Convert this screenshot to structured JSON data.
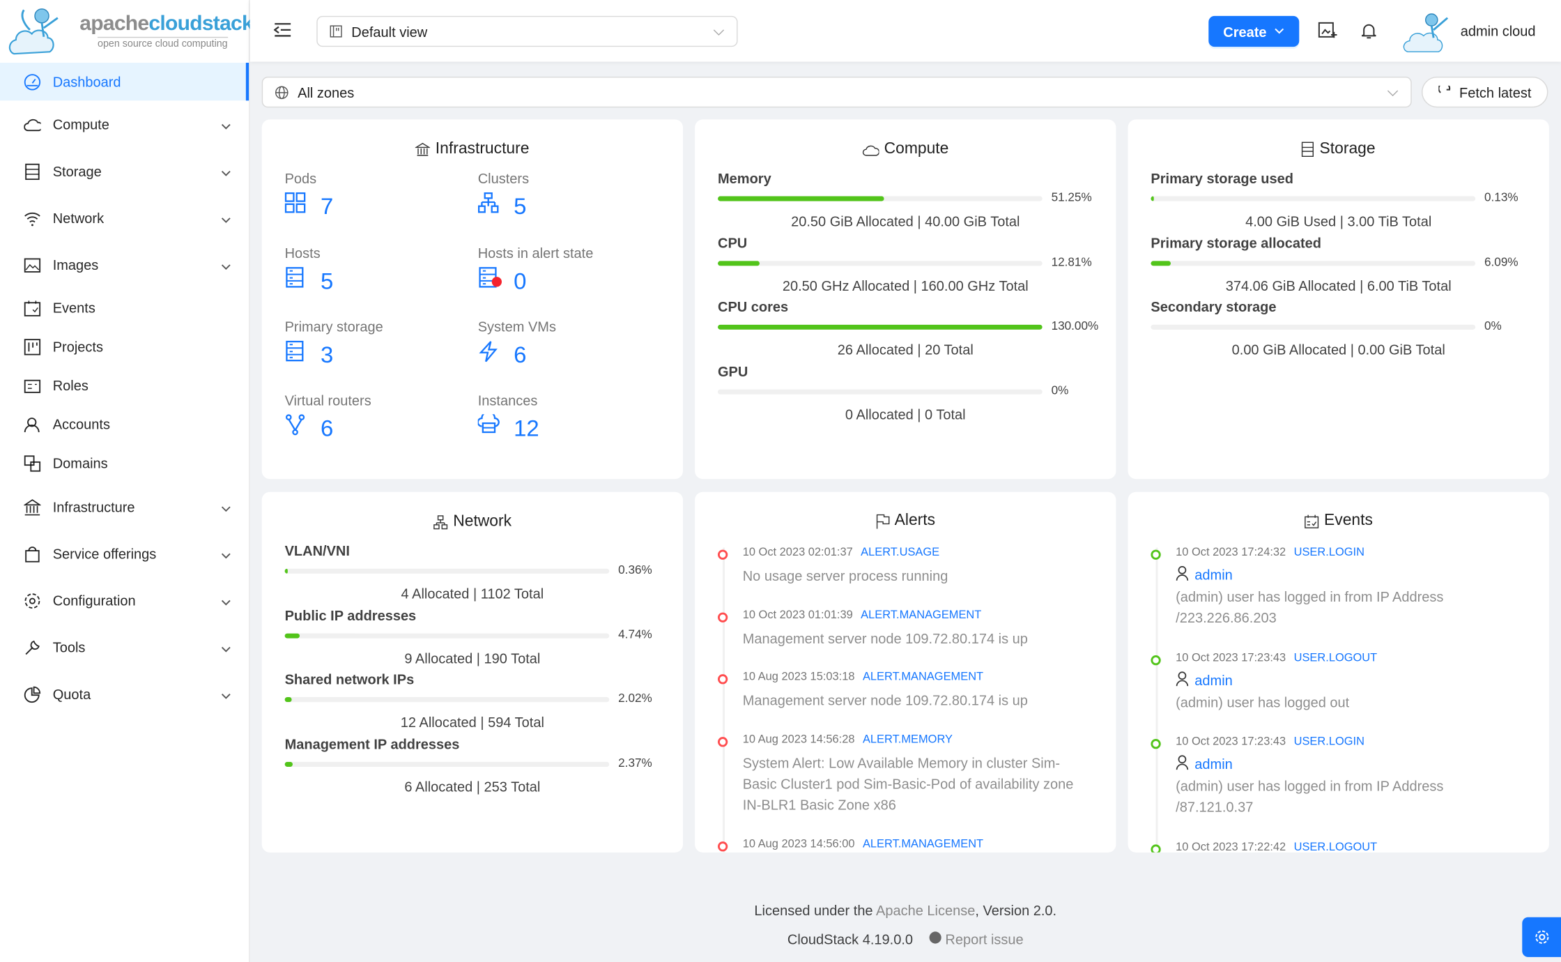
{
  "brand": {
    "name_part1": "apache",
    "name_part2": "cloudstack",
    "tagline": "open source cloud computing"
  },
  "colors": {
    "primary": "#1677ff",
    "success": "#52c41a",
    "error": "#ff4d4f",
    "background": "#f0f2f5"
  },
  "sidebar": {
    "items": [
      {
        "label": "Dashboard",
        "icon": "dashboard-icon",
        "active": true,
        "expandable": false
      },
      {
        "label": "Compute",
        "icon": "cloud-icon",
        "expandable": true
      },
      {
        "label": "Storage",
        "icon": "database-icon",
        "expandable": true
      },
      {
        "label": "Network",
        "icon": "wifi-icon",
        "expandable": true
      },
      {
        "label": "Images",
        "icon": "picture-icon",
        "expandable": true
      },
      {
        "label": "Events",
        "icon": "schedule-icon",
        "expandable": false
      },
      {
        "label": "Projects",
        "icon": "project-icon",
        "expandable": false
      },
      {
        "label": "Roles",
        "icon": "idcard-icon",
        "expandable": false
      },
      {
        "label": "Accounts",
        "icon": "team-icon",
        "expandable": false
      },
      {
        "label": "Domains",
        "icon": "block-icon",
        "expandable": false
      },
      {
        "label": "Infrastructure",
        "icon": "bank-icon",
        "expandable": true
      },
      {
        "label": "Service offerings",
        "icon": "shopping-icon",
        "expandable": true
      },
      {
        "label": "Configuration",
        "icon": "setting-icon",
        "expandable": true
      },
      {
        "label": "Tools",
        "icon": "tool-icon",
        "expandable": true
      },
      {
        "label": "Quota",
        "icon": "pie-chart-icon",
        "expandable": true
      }
    ]
  },
  "header": {
    "view_select": "Default view",
    "create_label": "Create",
    "user_name": "admin cloud"
  },
  "toolbar": {
    "zone_select": "All zones",
    "fetch_label": "Fetch latest"
  },
  "infrastructure": {
    "title": "Infrastructure",
    "items": [
      {
        "label": "Pods",
        "value": "7",
        "icon": "appstore-icon"
      },
      {
        "label": "Clusters",
        "value": "5",
        "icon": "cluster-icon"
      },
      {
        "label": "Hosts",
        "value": "5",
        "icon": "host-icon"
      },
      {
        "label": "Hosts in alert state",
        "value": "0",
        "icon": "host-alert-icon"
      },
      {
        "label": "Primary storage",
        "value": "3",
        "icon": "storage-icon"
      },
      {
        "label": "System VMs",
        "value": "6",
        "icon": "thunderbolt-icon"
      },
      {
        "label": "Virtual routers",
        "value": "6",
        "icon": "fork-icon"
      },
      {
        "label": "Instances",
        "value": "12",
        "icon": "cloud-server-icon"
      }
    ]
  },
  "compute": {
    "title": "Compute",
    "metrics": [
      {
        "label": "Memory",
        "percent_text": "51.25%",
        "percent": 51.25,
        "summary": "20.50 GiB Allocated | 40.00 GiB Total"
      },
      {
        "label": "CPU",
        "percent_text": "12.81%",
        "percent": 12.81,
        "summary": "20.50 GHz Allocated | 160.00 GHz Total"
      },
      {
        "label": "CPU cores",
        "percent_text": "130.00%",
        "percent": 130,
        "summary": "26 Allocated | 20 Total"
      },
      {
        "label": "GPU",
        "percent_text": "0%",
        "percent": 0,
        "summary": "0 Allocated | 0 Total"
      }
    ]
  },
  "storage": {
    "title": "Storage",
    "metrics": [
      {
        "label": "Primary storage used",
        "percent_text": "0.13%",
        "percent": 0.13,
        "summary": "4.00 GiB Used | 3.00 TiB Total"
      },
      {
        "label": "Primary storage allocated",
        "percent_text": "6.09%",
        "percent": 6.09,
        "summary": "374.06 GiB Allocated | 6.00 TiB Total"
      },
      {
        "label": "Secondary storage",
        "percent_text": "0%",
        "percent": 0,
        "summary": "0.00 GiB Allocated | 0.00 GiB Total"
      }
    ]
  },
  "network": {
    "title": "Network",
    "metrics": [
      {
        "label": "VLAN/VNI",
        "percent_text": "0.36%",
        "percent": 0.36,
        "summary": "4 Allocated | 1102 Total"
      },
      {
        "label": "Public IP addresses",
        "percent_text": "4.74%",
        "percent": 4.74,
        "summary": "9 Allocated | 190 Total"
      },
      {
        "label": "Shared network IPs",
        "percent_text": "2.02%",
        "percent": 2.02,
        "summary": "12 Allocated | 594 Total"
      },
      {
        "label": "Management IP addresses",
        "percent_text": "2.37%",
        "percent": 2.37,
        "summary": "6 Allocated | 253 Total"
      }
    ]
  },
  "alerts": {
    "title": "Alerts",
    "items": [
      {
        "time": "10 Oct 2023 02:01:37",
        "type": "ALERT.USAGE",
        "desc": "No usage server process running"
      },
      {
        "time": "10 Oct 2023 01:01:39",
        "type": "ALERT.MANAGEMENT",
        "desc": "Management server node 109.72.80.174 is up"
      },
      {
        "time": "10 Aug 2023 15:03:18",
        "type": "ALERT.MANAGEMENT",
        "desc": "Management server node 109.72.80.174 is up"
      },
      {
        "time": "10 Aug 2023 14:56:28",
        "type": "ALERT.MEMORY",
        "desc": "System Alert: Low Available Memory in cluster Sim-Basic Cluster1 pod Sim-Basic-Pod of availability zone IN-BLR1 Basic Zone x86"
      },
      {
        "time": "10 Aug 2023 14:56:00",
        "type": "ALERT.MANAGEMENT",
        "desc": ""
      }
    ]
  },
  "events": {
    "title": "Events",
    "items": [
      {
        "time": "10 Oct 2023 17:24:32",
        "type": "USER.LOGIN",
        "user": "admin",
        "desc": "(admin) user has logged in from IP Address /223.226.86.203"
      },
      {
        "time": "10 Oct 2023 17:23:43",
        "type": "USER.LOGOUT",
        "user": "admin",
        "desc": "(admin) user has logged out"
      },
      {
        "time": "10 Oct 2023 17:23:43",
        "type": "USER.LOGIN",
        "user": "admin",
        "desc": "(admin) user has logged in from IP Address /87.121.0.37"
      },
      {
        "time": "10 Oct 2023 17:22:42",
        "type": "USER.LOGOUT",
        "user": "",
        "desc": ""
      }
    ]
  },
  "footer": {
    "license_prefix": "Licensed under the ",
    "license_link": "Apache License",
    "license_suffix": ", Version 2.0.",
    "version": "CloudStack 4.19.0.0",
    "report_issue": "Report issue"
  }
}
